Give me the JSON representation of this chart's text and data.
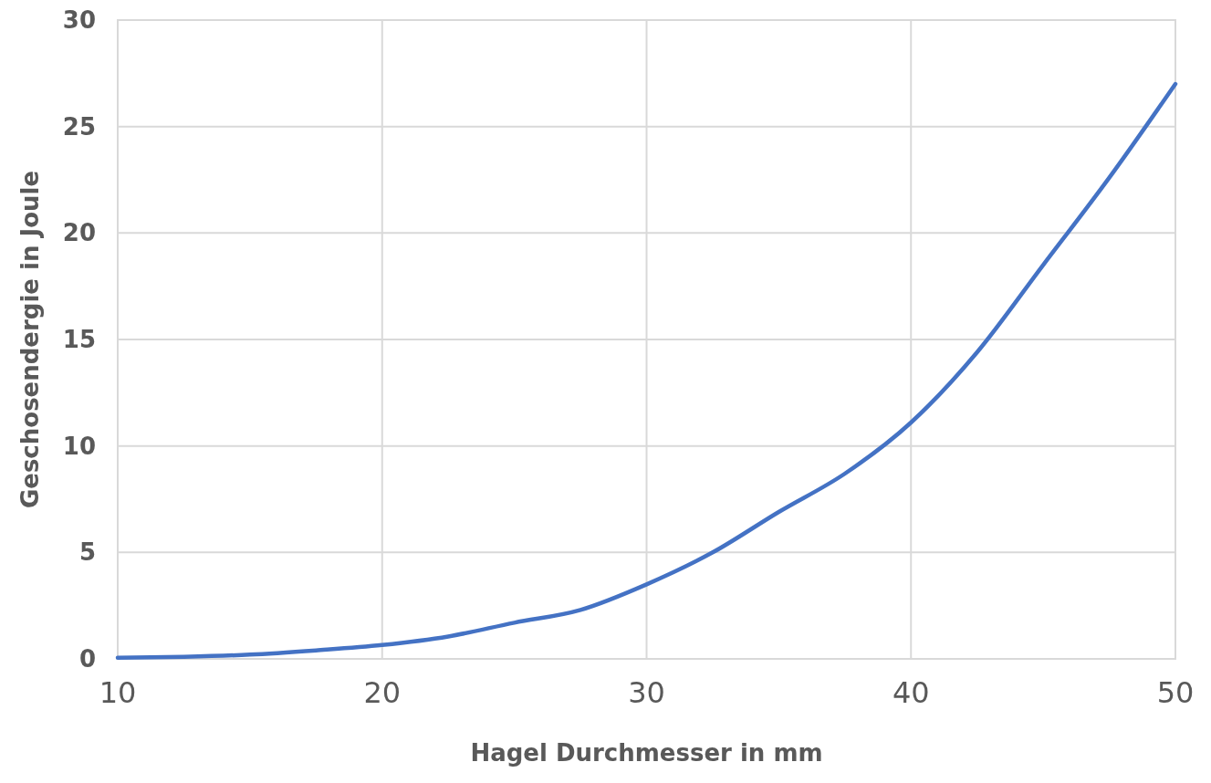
{
  "chart_data": {
    "type": "line",
    "xlabel": "Hagel Durchmesser in mm",
    "ylabel": "Geschosendergie in Joule",
    "x": [
      10,
      12.5,
      15,
      17.5,
      20,
      22.5,
      25,
      27.5,
      30,
      32.5,
      35,
      37.5,
      40,
      42.5,
      45,
      47.5,
      50
    ],
    "series": [
      {
        "color": "#4472c4",
        "values": [
          0.05,
          0.1,
          0.2,
          0.4,
          0.65,
          1.05,
          1.7,
          2.3,
          3.5,
          5.0,
          6.9,
          8.7,
          11.1,
          14.4,
          18.5,
          22.6,
          27.0
        ]
      }
    ],
    "xlim": [
      10,
      50
    ],
    "xticks": [
      10,
      20,
      30,
      40,
      50
    ],
    "ylim": [
      0,
      30
    ],
    "yticks": [
      0,
      5,
      10,
      15,
      20,
      25,
      30
    ],
    "grid": true,
    "marker": "none",
    "line_style": "solid"
  }
}
